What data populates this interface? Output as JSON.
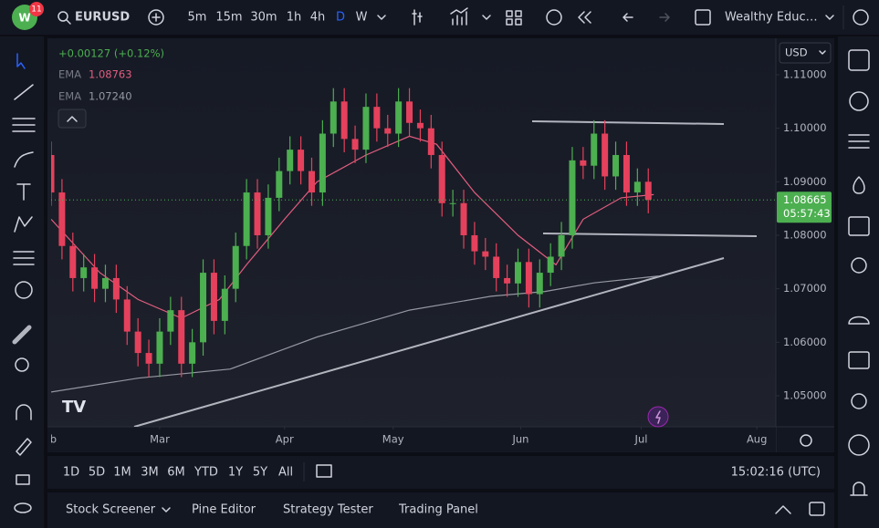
{
  "toolbar": {
    "badge": "11",
    "symbol": "EURUSD",
    "intervals": [
      "5m",
      "15m",
      "30m",
      "1h",
      "4h",
      "D",
      "W"
    ],
    "layout_name": "Wealthy Educ…"
  },
  "chart_data": {
    "type": "candlestick",
    "currency": "USD",
    "change_label": "+0.00127 (+0.12%)",
    "last_price_label": "1.08665",
    "countdown": "05:57:43",
    "xlim": [
      0,
      133.5
    ],
    "ylim": [
      1.04421,
      1.11647
    ],
    "grid": false,
    "up_color": "#4caf50",
    "down_color": "#e5415c",
    "yticks": [
      {
        "value": 1.11,
        "label": "1.11000"
      },
      {
        "value": 1.1,
        "label": "1.10000"
      },
      {
        "value": 1.09,
        "label": "1.09000"
      },
      {
        "value": 1.08,
        "label": "1.08000"
      },
      {
        "value": 1.07,
        "label": "1.07000"
      },
      {
        "value": 1.06,
        "label": "1.06000"
      },
      {
        "value": 1.05,
        "label": "1.05000"
      }
    ],
    "xticks": [
      {
        "value": -0.7,
        "label": "Feb"
      },
      {
        "value": 20,
        "label": "Mar"
      },
      {
        "value": 43,
        "label": "Apr"
      },
      {
        "value": 63,
        "label": "May"
      },
      {
        "value": 86.5,
        "label": "Jun"
      },
      {
        "value": 108.7,
        "label": "Jul"
      },
      {
        "value": 130,
        "label": "Aug"
      }
    ],
    "x": [
      0,
      2,
      4,
      6,
      8,
      10,
      12,
      14,
      16,
      18,
      20,
      22,
      24,
      26,
      28,
      30,
      32,
      34,
      36,
      38,
      40,
      42,
      44,
      46,
      48,
      50,
      52,
      54,
      56,
      58,
      60,
      62,
      64,
      66,
      68,
      70,
      72,
      74,
      76,
      78,
      80,
      82,
      84,
      86,
      88,
      90,
      92,
      94,
      96,
      98,
      100,
      102,
      104,
      106,
      108,
      110
    ],
    "open": [
      1.095,
      1.088,
      1.078,
      1.072,
      1.074,
      1.07,
      1.072,
      1.068,
      1.062,
      1.058,
      1.056,
      1.062,
      1.066,
      1.056,
      1.06,
      1.073,
      1.064,
      1.07,
      1.078,
      1.088,
      1.08,
      1.087,
      1.092,
      1.096,
      1.092,
      1.088,
      1.099,
      1.105,
      1.098,
      1.096,
      1.104,
      1.1,
      1.099,
      1.105,
      1.101,
      1.1,
      1.095,
      1.086,
      1.086,
      1.08,
      1.077,
      1.076,
      1.072,
      1.071,
      1.075,
      1.069,
      1.073,
      1.076,
      1.08,
      1.094,
      1.093,
      1.099,
      1.091,
      1.095,
      1.088,
      1.09
    ],
    "high": [
      1.0975,
      1.0905,
      1.0805,
      1.0765,
      1.0765,
      1.0745,
      1.0745,
      1.0705,
      1.0645,
      1.0605,
      1.0645,
      1.0685,
      1.0685,
      1.0625,
      1.0755,
      1.0755,
      1.0725,
      1.0805,
      1.0905,
      1.0905,
      1.0895,
      1.0945,
      1.0985,
      1.0985,
      1.0945,
      1.1015,
      1.1075,
      1.1075,
      1.1005,
      1.1065,
      1.1065,
      1.1025,
      1.1075,
      1.1075,
      1.1035,
      1.1025,
      1.0975,
      1.0885,
      1.0885,
      1.0825,
      1.0795,
      1.0785,
      1.0745,
      1.0775,
      1.0775,
      1.0755,
      1.0785,
      1.0825,
      1.0965,
      1.0965,
      1.1015,
      1.1015,
      1.0975,
      1.0975,
      1.0925,
      1.0925
    ],
    "low": [
      1.0855,
      1.0755,
      1.0695,
      1.0695,
      1.0675,
      1.0675,
      1.0655,
      1.0595,
      1.0555,
      1.0535,
      1.0535,
      1.0595,
      1.0535,
      1.0535,
      1.0575,
      1.0615,
      1.0615,
      1.0675,
      1.0755,
      1.0775,
      1.0775,
      1.0845,
      1.0895,
      1.0895,
      1.0855,
      1.0855,
      1.0965,
      1.0955,
      1.0935,
      1.0935,
      1.0975,
      1.0965,
      1.0965,
      1.0985,
      1.0975,
      1.0925,
      1.0835,
      1.0835,
      1.0775,
      1.0745,
      1.0735,
      1.0695,
      1.0685,
      1.0685,
      1.0665,
      1.0665,
      1.0705,
      1.0735,
      1.0775,
      1.0905,
      1.0905,
      1.0885,
      1.0885,
      1.0855,
      1.0855,
      1.0841
    ],
    "close": [
      1.088,
      1.078,
      1.072,
      1.074,
      1.07,
      1.072,
      1.068,
      1.062,
      1.058,
      1.056,
      1.062,
      1.066,
      1.056,
      1.06,
      1.073,
      1.064,
      1.07,
      1.078,
      1.088,
      1.08,
      1.087,
      1.092,
      1.096,
      1.092,
      1.088,
      1.099,
      1.105,
      1.098,
      1.096,
      1.104,
      1.1,
      1.099,
      1.105,
      1.101,
      1.1,
      1.095,
      1.086,
      1.086,
      1.08,
      1.077,
      1.076,
      1.072,
      1.071,
      1.075,
      1.069,
      1.073,
      1.076,
      1.08,
      1.094,
      1.093,
      1.099,
      1.091,
      1.095,
      1.088,
      1.09,
      1.0866
    ],
    "ema": [
      {
        "name": "EMA",
        "last_label": "1.08763",
        "color": "#e35d7f",
        "x": [
          0,
          9,
          16,
          24,
          31,
          36,
          43,
          49,
          58,
          66,
          71,
          78,
          86,
          93,
          98,
          105,
          111
        ],
        "values": [
          1.083,
          1.073,
          1.068,
          1.0645,
          1.068,
          1.0745,
          1.083,
          1.09,
          1.095,
          1.0985,
          1.097,
          1.088,
          1.08,
          1.0745,
          1.083,
          1.087,
          1.0876
        ]
      },
      {
        "name": "EMA",
        "last_label": "1.07240",
        "color": "#9598a1",
        "x": [
          0,
          16,
          33,
          49,
          66,
          81,
          91,
          100,
          112
        ],
        "values": [
          1.0507,
          1.0533,
          1.055,
          1.061,
          1.066,
          1.0686,
          1.0695,
          1.0711,
          1.0724
        ]
      }
    ]
  },
  "timeframes": {
    "ranges": [
      "1D",
      "5D",
      "1M",
      "3M",
      "6M",
      "YTD",
      "1Y",
      "5Y",
      "All"
    ],
    "clock": "15:02:16 (UTC)"
  },
  "panel_tabs": [
    "Stock Screener",
    "Pine Editor",
    "Strategy Tester",
    "Trading Panel"
  ]
}
